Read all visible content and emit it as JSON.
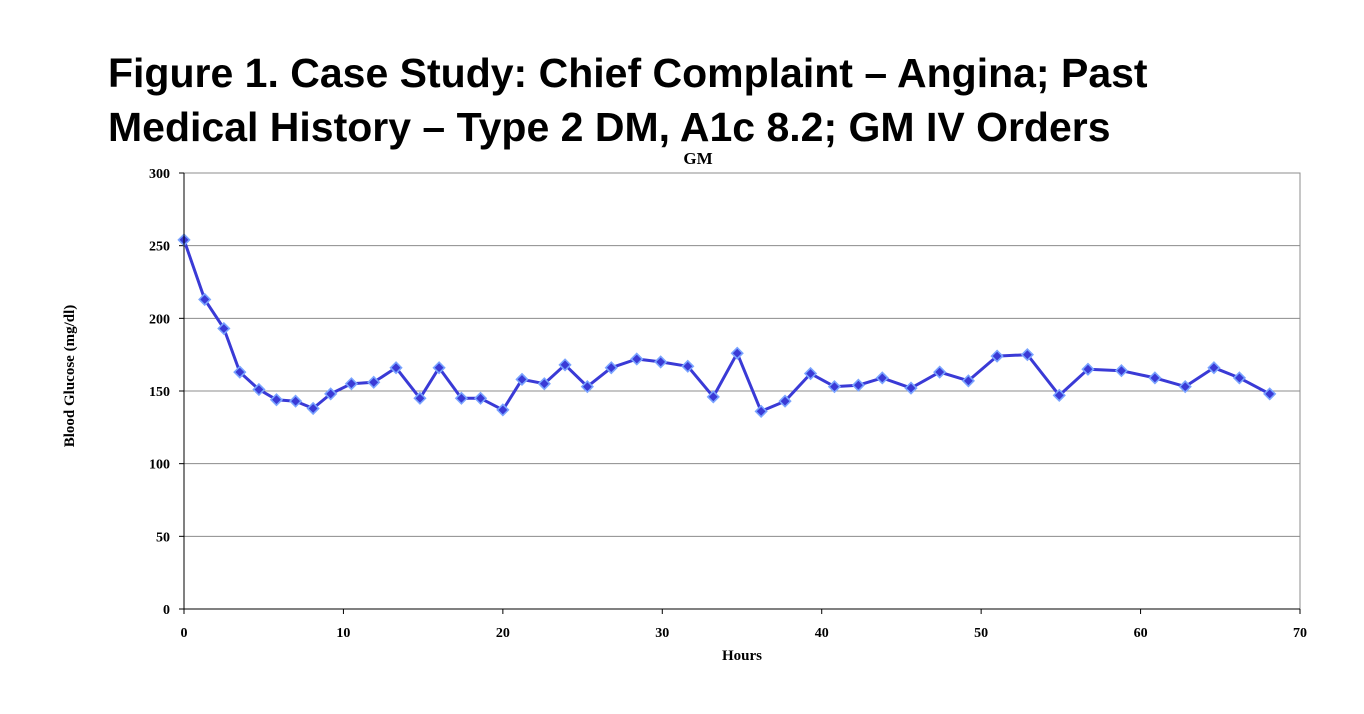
{
  "figure_title": {
    "line1": "Figure 1. Case Study: Chief Complaint – Angina; Past",
    "line2": "Medical History – Type 2 DM, A1c 8.2; GM IV Orders"
  },
  "colors": {
    "series": "#3a3ad6",
    "marker": "#3a3ad6",
    "marker_border": "#7aa4ff",
    "grid": "#8c8c8c",
    "axis": "#000000"
  },
  "chart_data": {
    "type": "line",
    "title": "GM",
    "xlabel": "Hours",
    "ylabel": "Blood Glucose (mg/dl)",
    "xlim": [
      0,
      70
    ],
    "ylim": [
      0,
      300
    ],
    "x_ticks": [
      0,
      10,
      20,
      30,
      40,
      50,
      60,
      70
    ],
    "y_ticks": [
      0,
      50,
      100,
      150,
      200,
      250,
      300
    ],
    "grid": "horizontal",
    "legend": "none",
    "marker": "diamond",
    "series": [
      {
        "x": [
          0,
          1.3,
          2.5,
          3.5,
          4.7,
          5.8,
          7.0,
          8.1,
          9.2,
          10.5,
          11.9,
          13.3,
          14.8,
          16.0,
          17.4,
          18.6,
          20.0,
          21.2,
          22.6,
          23.9,
          25.3,
          26.8,
          28.4,
          29.9,
          31.6,
          33.2,
          34.7,
          36.2,
          37.7,
          39.3,
          40.8,
          42.3,
          43.8,
          45.6,
          47.4,
          49.2,
          51.0,
          52.9,
          54.9,
          56.7,
          58.8,
          60.9,
          62.8,
          64.6,
          66.2,
          68.1
        ],
        "values": [
          254,
          213,
          193,
          163,
          151,
          144,
          143,
          138,
          148,
          155,
          156,
          166,
          145,
          166,
          145,
          145,
          137,
          158,
          155,
          168,
          153,
          166,
          172,
          170,
          167,
          146,
          176,
          136,
          143,
          162,
          153,
          154,
          159,
          152,
          163,
          157,
          174,
          175,
          147,
          165,
          164,
          159,
          153,
          166,
          159,
          148
        ]
      }
    ]
  }
}
